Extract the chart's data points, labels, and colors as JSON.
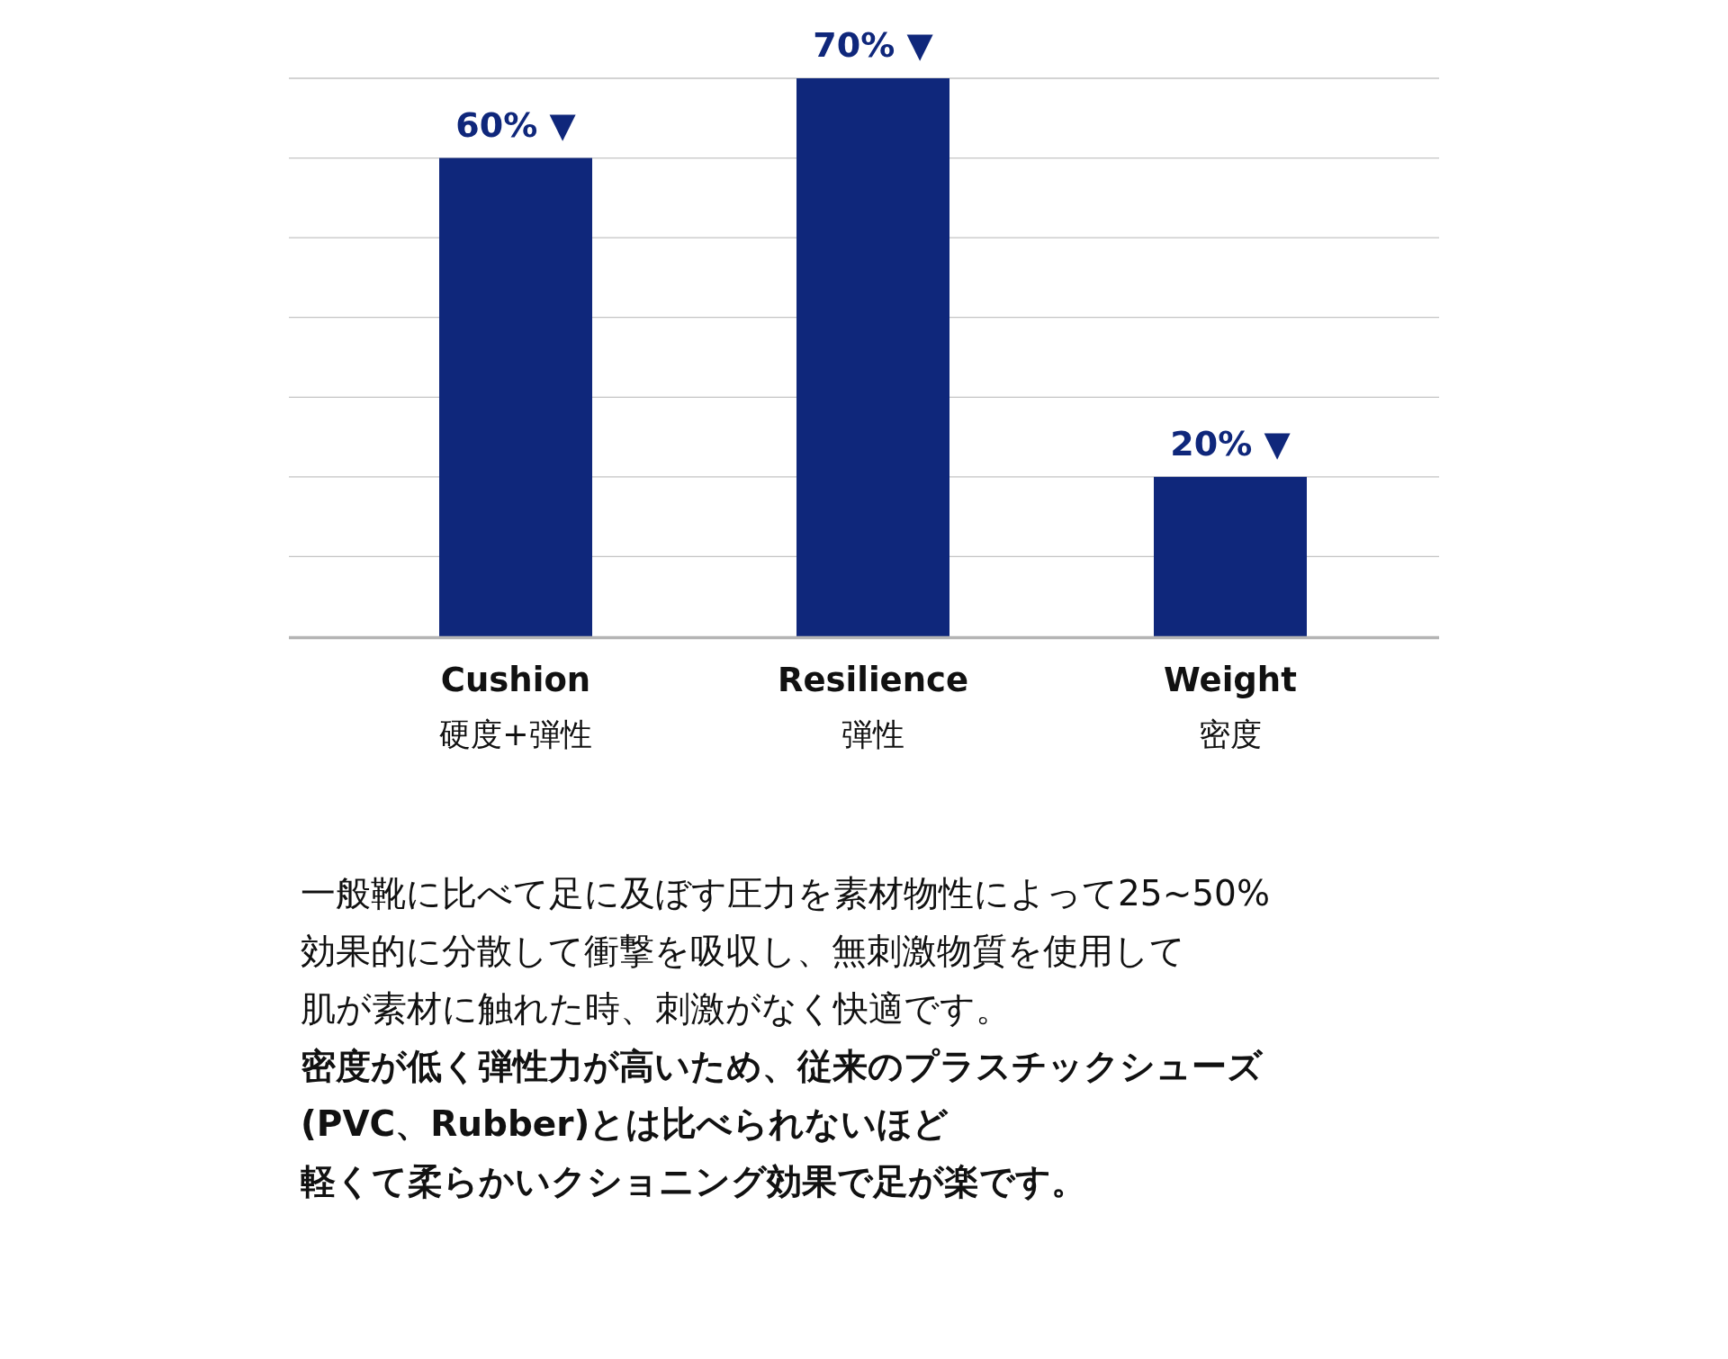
{
  "chart_data": {
    "type": "bar",
    "categories": [
      "Cushion\n硬度+弾性",
      "Resilience\n弾性",
      "Weight\n密度"
    ],
    "values": [
      60,
      70,
      20
    ],
    "value_labels": [
      "60% ▼",
      "70% ▼",
      "20% ▼"
    ],
    "color": "#0f277b",
    "ylim": [
      0,
      70
    ],
    "yticks": [
      {
        "value": 0,
        "label": null
      },
      {
        "value": 10,
        "label": null
      },
      {
        "value": 20,
        "label": null
      },
      {
        "value": 30,
        "label": null
      },
      {
        "value": 40,
        "label": null
      },
      {
        "value": 50,
        "label": null
      },
      {
        "value": 60,
        "label": null
      },
      {
        "value": 70,
        "label": null
      }
    ],
    "grid": "y",
    "tick_labels": "x",
    "annotations": [
      "一般靴に比べて足に及ぼす圧力を素材物性によって25~50%",
      "効果的に分散して衝撃を吸収し、無刺激物質を使用して",
      "肌が素材に触れた時、刺激がなく快適です。",
      "**密度が低く弾性力が高いため、従来のプラスチックシューズ**",
      "**(PVC、Rubber)とは比べられないほど**",
      "**軽くて柔らかいクショニング効果で足が楽です。**"
    ]
  }
}
